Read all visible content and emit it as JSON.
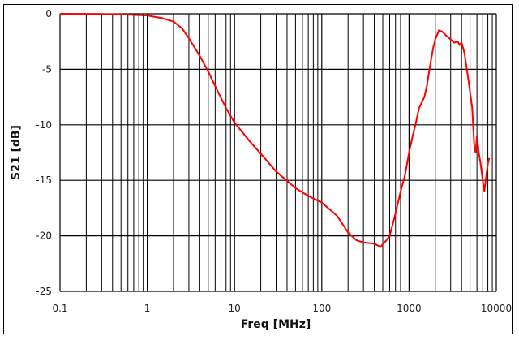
{
  "chart_data": {
    "type": "line",
    "title": "",
    "xlabel": "Freq [MHz]",
    "ylabel": "S21 [dB]",
    "xscale": "log",
    "xlim": [
      0.1,
      10000
    ],
    "ylim": [
      -25,
      0
    ],
    "xticks": [
      "0.1",
      "1",
      "10",
      "100",
      "1000",
      "10000"
    ],
    "yticks": [
      "0",
      "-5",
      "-10",
      "-15",
      "-20",
      "-25"
    ],
    "grid": true,
    "legend": "none",
    "series": [
      {
        "color": "#ff0000",
        "x": [
          0.1,
          0.3,
          0.5,
          1,
          1.5,
          2,
          2.5,
          3,
          4,
          5,
          6,
          8,
          10,
          15,
          20,
          30,
          50,
          70,
          100,
          150,
          200,
          250,
          300,
          400,
          470,
          550,
          600,
          700,
          800,
          900,
          1000,
          1100,
          1200,
          1300,
          1500,
          1600,
          1700,
          1800,
          1900,
          2000,
          2200,
          2400,
          2700,
          3000,
          3300,
          3600,
          3800,
          4000,
          4300,
          4700,
          5000,
          5300,
          5600,
          5800,
          6000,
          6300,
          6600,
          7000,
          7300,
          7700,
          8000,
          8300
        ],
        "y": [
          0,
          -0.02,
          -0.05,
          -0.15,
          -0.4,
          -0.7,
          -1.3,
          -2.2,
          -3.8,
          -5.2,
          -6.5,
          -8.5,
          -9.8,
          -11.5,
          -12.6,
          -14.2,
          -15.7,
          -16.4,
          -17.0,
          -18.2,
          -19.7,
          -20.4,
          -20.6,
          -20.7,
          -21.0,
          -20.4,
          -20.0,
          -18,
          -16,
          -14.5,
          -12.5,
          -11,
          -9.8,
          -8.5,
          -7.5,
          -6.5,
          -5.2,
          -4,
          -3,
          -2.3,
          -1.5,
          -1.6,
          -2,
          -2.3,
          -2.6,
          -2.5,
          -2.8,
          -2.6,
          -3.5,
          -5.5,
          -7,
          -8.5,
          -12,
          -12.5,
          -11,
          -12.5,
          -13.5,
          -15,
          -16,
          -14.5,
          -13.5,
          -13
        ]
      }
    ]
  }
}
